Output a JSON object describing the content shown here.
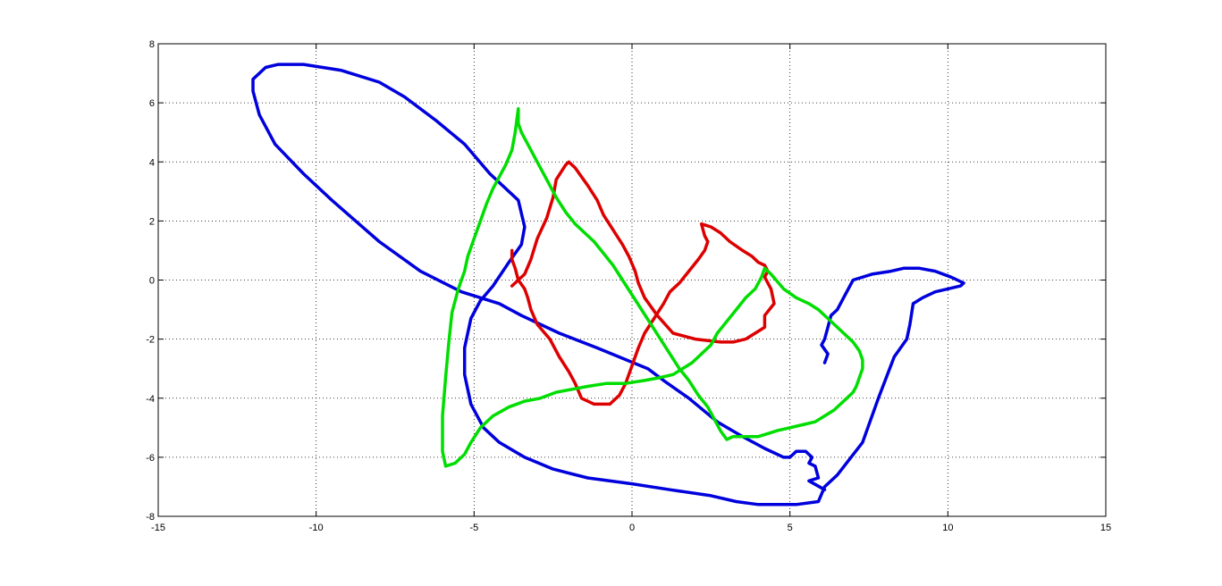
{
  "chart_data": {
    "type": "line",
    "title": "",
    "xlabel": "",
    "ylabel": "",
    "xlim": [
      -15,
      15
    ],
    "ylim": [
      -8,
      8
    ],
    "xticks": [
      -15,
      -10,
      -5,
      0,
      5,
      10,
      15
    ],
    "yticks": [
      -8,
      -6,
      -4,
      -2,
      0,
      2,
      4,
      6,
      8
    ],
    "xtick_labels": [
      "-15",
      "-10",
      "-5",
      "0",
      "5",
      "10",
      "15"
    ],
    "ytick_labels": [
      "-8",
      "-6",
      "-4",
      "-2",
      "0",
      "2",
      "4",
      "6",
      "8"
    ],
    "grid": true,
    "legend": "none",
    "series": [
      {
        "color": "#0000dd",
        "x": [
          6.1,
          5.6,
          5.9,
          5.8,
          5.6,
          5.7,
          5.5,
          5.2,
          5.0,
          4.8,
          4.2,
          3.5,
          2.7,
          1.8,
          1.0,
          0.5,
          -1.1,
          -2.3,
          -3.5,
          -4.2,
          -5.4,
          -6.7,
          -8.0,
          -9.5,
          -10.4,
          -11.3,
          -11.8,
          -12.0,
          -12.0,
          -11.6,
          -11.2,
          -10.4,
          -9.2,
          -8.0,
          -7.2,
          -6.2,
          -5.3,
          -4.5,
          -3.6,
          -3.4,
          -3.5,
          -3.9,
          -4.4,
          -4.8,
          -5.1,
          -5.3,
          -5.3,
          -5.1,
          -4.7,
          -4.2,
          -3.4,
          -2.5,
          -1.4,
          0.0,
          1.2,
          2.5,
          3.3,
          4.0,
          5.2,
          5.9,
          6.1,
          6.5,
          7.3,
          7.8,
          8.3,
          8.7,
          8.8,
          8.9,
          9.2,
          9.6,
          10.0,
          10.4,
          10.5,
          10.1,
          9.6,
          9.1,
          8.6,
          8.2,
          7.6,
          7.0,
          6.7,
          6.5,
          6.3,
          6.2,
          6.1,
          6.0,
          6.2,
          6.1
        ],
        "y": [
          -7.1,
          -6.8,
          -6.7,
          -6.3,
          -6.2,
          -6.0,
          -5.8,
          -5.8,
          -6.0,
          -6.0,
          -5.7,
          -5.3,
          -4.8,
          -4.0,
          -3.4,
          -3.0,
          -2.3,
          -1.8,
          -1.2,
          -0.8,
          -0.4,
          0.3,
          1.3,
          2.7,
          3.6,
          4.6,
          5.6,
          6.4,
          6.8,
          7.2,
          7.3,
          7.3,
          7.1,
          6.7,
          6.2,
          5.4,
          4.6,
          3.6,
          2.7,
          1.8,
          1.2,
          0.6,
          -0.2,
          -0.7,
          -1.3,
          -2.3,
          -3.2,
          -4.2,
          -5.0,
          -5.5,
          -6.0,
          -6.4,
          -6.7,
          -6.9,
          -7.1,
          -7.3,
          -7.5,
          -7.6,
          -7.6,
          -7.5,
          -7.0,
          -6.6,
          -5.5,
          -4.0,
          -2.6,
          -2.0,
          -1.5,
          -0.8,
          -0.6,
          -0.4,
          -0.3,
          -0.2,
          -0.1,
          0.1,
          0.3,
          0.4,
          0.4,
          0.3,
          0.2,
          0.0,
          -0.6,
          -1.0,
          -1.2,
          -1.6,
          -2.0,
          -2.2,
          -2.5,
          -2.8
        ]
      },
      {
        "color": "#dd0000",
        "x": [
          -3.8,
          -3.8,
          -3.7,
          -3.6,
          -3.4,
          -3.3,
          -3.2,
          -3.0,
          -2.6,
          -2.3,
          -2.0,
          -1.8,
          -1.6,
          -1.2,
          -0.7,
          -0.4,
          -0.2,
          0.0,
          0.2,
          0.4,
          0.7,
          1.0,
          1.2,
          1.5,
          1.8,
          2.1,
          2.3,
          2.4,
          2.3,
          2.2,
          2.5,
          2.8,
          3.1,
          3.5,
          3.8,
          4.0,
          4.2,
          4.3,
          4.2,
          4.4,
          4.5,
          4.2,
          4.2,
          3.9,
          3.6,
          3.2,
          2.8,
          2.0,
          1.3,
          0.8,
          0.4,
          0.2,
          0.1,
          -0.1,
          -0.3,
          -0.6,
          -0.9,
          -1.1,
          -1.4,
          -1.8,
          -2.0,
          -2.1,
          -2.4,
          -2.5,
          -2.7,
          -3.0,
          -3.2,
          -3.4,
          -3.6,
          -3.8
        ],
        "y": [
          1.0,
          0.7,
          0.4,
          0.0,
          -0.3,
          -0.6,
          -1.0,
          -1.5,
          -2.0,
          -2.6,
          -3.1,
          -3.5,
          -4.0,
          -4.2,
          -4.2,
          -3.9,
          -3.5,
          -2.9,
          -2.3,
          -1.8,
          -1.3,
          -0.8,
          -0.4,
          -0.1,
          0.3,
          0.7,
          1.0,
          1.3,
          1.5,
          1.9,
          1.8,
          1.6,
          1.3,
          1.0,
          0.8,
          0.6,
          0.5,
          0.3,
          0.1,
          -0.3,
          -0.8,
          -1.2,
          -1.6,
          -1.8,
          -2.0,
          -2.1,
          -2.1,
          -2.0,
          -1.8,
          -1.2,
          -0.6,
          -0.1,
          0.3,
          0.8,
          1.2,
          1.7,
          2.2,
          2.7,
          3.2,
          3.8,
          4.0,
          3.9,
          3.4,
          2.8,
          2.1,
          1.4,
          0.7,
          0.2,
          0.0,
          -0.2
        ]
      },
      {
        "color": "#00dd00",
        "x": [
          -3.6,
          -3.6,
          -3.5,
          -3.3,
          -3.0,
          -2.7,
          -2.4,
          -2.1,
          -1.8,
          -1.5,
          -1.2,
          -0.9,
          -0.6,
          -0.3,
          0.0,
          0.3,
          0.6,
          0.9,
          1.2,
          1.5,
          1.8,
          2.1,
          2.4,
          2.6,
          2.8,
          3.0,
          3.2,
          3.6,
          4.0,
          4.3,
          4.6,
          5.0,
          5.4,
          5.8,
          6.1,
          6.4,
          6.6,
          6.8,
          7.0,
          7.1,
          7.2,
          7.3,
          7.3,
          7.2,
          7.0,
          6.8,
          6.5,
          6.2,
          5.9,
          5.6,
          5.2,
          4.8,
          4.4,
          4.2,
          4.1,
          3.9,
          3.6,
          3.3,
          3.0,
          2.7,
          2.5,
          2.2,
          1.9,
          1.6,
          1.3,
          0.9,
          0.4,
          -0.2,
          -0.8,
          -1.4,
          -1.9,
          -2.4,
          -2.9,
          -3.4,
          -3.9,
          -4.4,
          -4.8,
          -5.1,
          -5.3,
          -5.6,
          -5.9,
          -6.0,
          -6.0,
          -5.9,
          -5.8,
          -5.7,
          -5.5,
          -5.3,
          -5.2,
          -5.0,
          -4.8,
          -4.6,
          -4.4,
          -4.2,
          -4.0,
          -3.8,
          -3.7,
          -3.6
        ],
        "y": [
          5.8,
          5.3,
          5.0,
          4.6,
          4.0,
          3.4,
          2.8,
          2.3,
          1.9,
          1.6,
          1.3,
          0.9,
          0.5,
          0.0,
          -0.5,
          -1.0,
          -1.5,
          -2.0,
          -2.5,
          -3.0,
          -3.4,
          -3.9,
          -4.3,
          -4.7,
          -5.1,
          -5.4,
          -5.3,
          -5.3,
          -5.3,
          -5.2,
          -5.1,
          -5.0,
          -4.9,
          -4.8,
          -4.6,
          -4.4,
          -4.2,
          -4.0,
          -3.8,
          -3.6,
          -3.3,
          -3.0,
          -2.7,
          -2.4,
          -2.1,
          -1.9,
          -1.6,
          -1.3,
          -1.0,
          -0.8,
          -0.6,
          -0.3,
          0.2,
          0.4,
          0.1,
          -0.3,
          -0.6,
          -1.0,
          -1.4,
          -1.8,
          -2.2,
          -2.5,
          -2.8,
          -3.0,
          -3.2,
          -3.3,
          -3.4,
          -3.5,
          -3.5,
          -3.6,
          -3.7,
          -3.8,
          -4.0,
          -4.1,
          -4.3,
          -4.6,
          -5.0,
          -5.5,
          -5.9,
          -6.2,
          -6.3,
          -5.8,
          -4.6,
          -3.3,
          -2.1,
          -1.1,
          -0.3,
          0.3,
          0.8,
          1.4,
          2.0,
          2.6,
          3.1,
          3.5,
          3.9,
          4.4,
          5.0,
          5.8
        ]
      }
    ]
  }
}
